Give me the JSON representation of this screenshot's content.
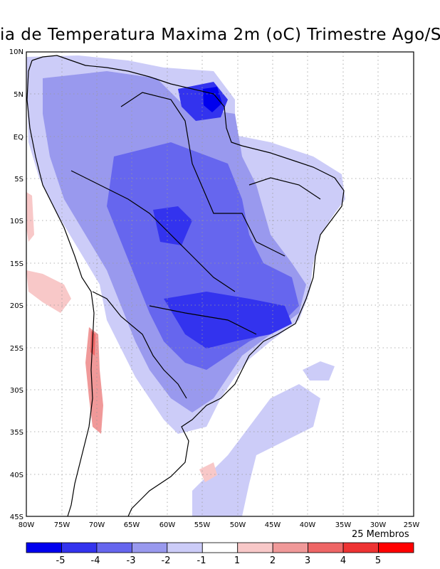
{
  "title": "ia de Temperatura Maxima 2m (oC) Trimestre Ago/S",
  "lat_ticks": [
    "10N",
    "5N",
    "EQ",
    "5S",
    "10S",
    "15S",
    "20S",
    "25S",
    "30S",
    "35S",
    "40S",
    "45S"
  ],
  "lon_ticks": [
    "80W",
    "75W",
    "70W",
    "65W",
    "60W",
    "55W",
    "50W",
    "45W",
    "40W",
    "35W",
    "30W",
    "25W"
  ],
  "members_label": "25 Membros",
  "colorbar": {
    "labels": [
      "-5",
      "-4",
      "-3",
      "-2",
      "-1",
      "1",
      "2",
      "3",
      "4",
      "5"
    ],
    "colors": [
      "#0000ee",
      "#3333ee",
      "#6666ee",
      "#9999ee",
      "#ccccf8",
      "#ffffff",
      "#f8c8c8",
      "#f09999",
      "#ee6666",
      "#ee3333",
      "#ff0000"
    ]
  }
}
